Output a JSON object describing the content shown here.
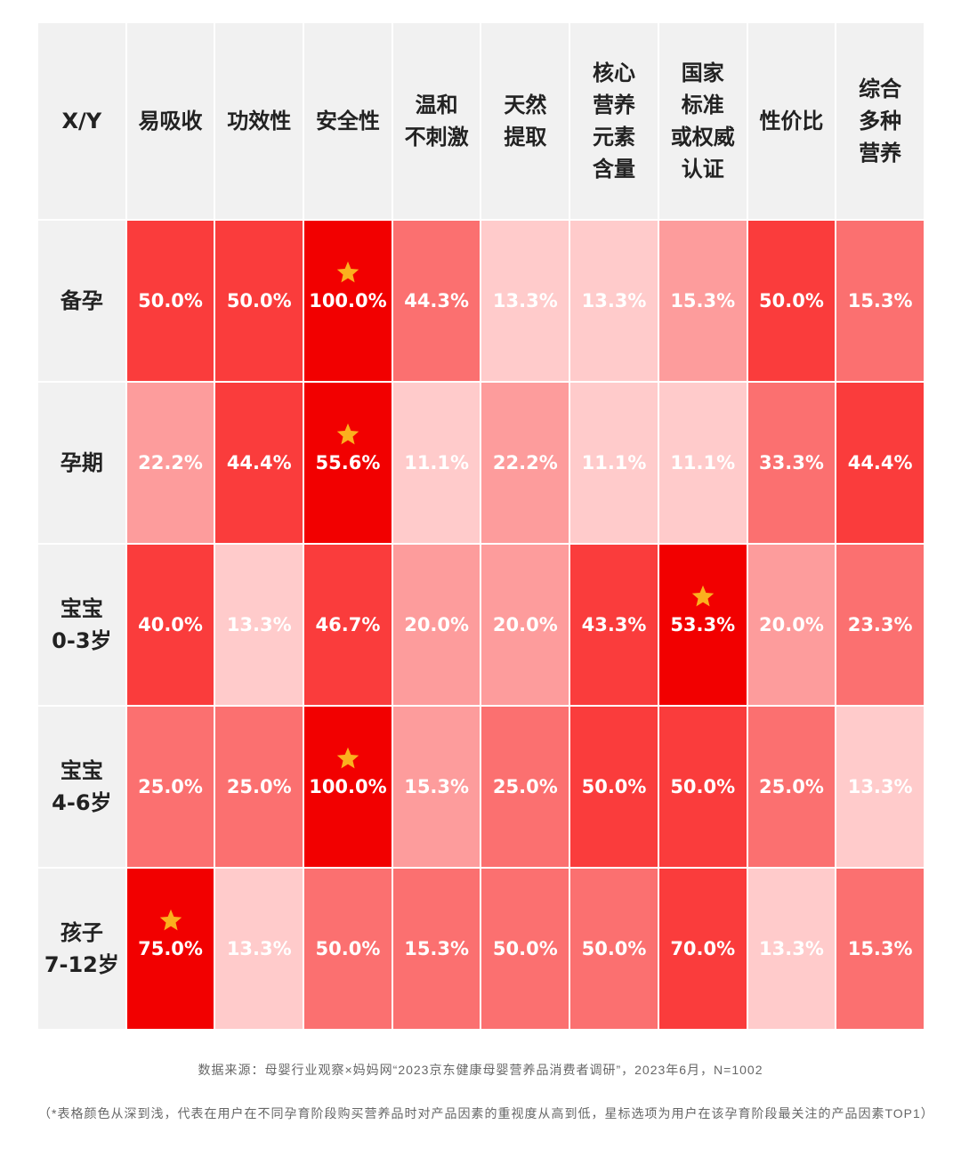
{
  "chart_data": {
    "type": "heatmap",
    "corner_label": "X/Y",
    "columns": [
      "易吸收",
      "功效性",
      "安全性",
      "温和\n不刺激",
      "天然\n提取",
      "核心\n营养\n元素\n含量",
      "国家\n标准\n或权威\n认证",
      "性价比",
      "综合\n多种\n营养"
    ],
    "rows": [
      {
        "label": "备孕",
        "values": [
          50.0,
          50.0,
          100.0,
          44.3,
          13.3,
          13.3,
          15.3,
          50.0,
          15.3
        ],
        "top1": 2
      },
      {
        "label": "孕期",
        "values": [
          22.2,
          44.4,
          55.6,
          11.1,
          22.2,
          11.1,
          11.1,
          33.3,
          44.4
        ],
        "top1": 2
      },
      {
        "label": "宝宝\n0-3岁",
        "values": [
          40.0,
          13.3,
          46.7,
          20.0,
          20.0,
          43.3,
          53.3,
          20.0,
          23.3
        ],
        "top1": 6
      },
      {
        "label": "宝宝\n4-6岁",
        "values": [
          25.0,
          25.0,
          100.0,
          15.3,
          25.0,
          50.0,
          50.0,
          25.0,
          13.3
        ],
        "top1": 2
      },
      {
        "label": "孩子\n7-12岁",
        "values": [
          75.0,
          13.3,
          50.0,
          15.3,
          50.0,
          50.0,
          70.0,
          13.3,
          15.3
        ],
        "top1": 0
      }
    ],
    "value_suffix": "%",
    "shades": [
      {
        "level": 1,
        "color": "#f20000"
      },
      {
        "level": 2,
        "color": "#fa3c3c"
      },
      {
        "level": 3,
        "color": "#fb7070"
      },
      {
        "level": 4,
        "color": "#fd9c9c"
      },
      {
        "level": 5,
        "color": "#ffcbcb"
      }
    ],
    "cell_levels": [
      [
        2,
        2,
        1,
        3,
        5,
        5,
        4,
        2,
        3
      ],
      [
        4,
        2,
        1,
        5,
        4,
        5,
        5,
        3,
        2
      ],
      [
        2,
        5,
        2,
        4,
        4,
        2,
        1,
        4,
        3
      ],
      [
        3,
        3,
        1,
        4,
        3,
        2,
        2,
        3,
        5
      ],
      [
        1,
        5,
        3,
        3,
        3,
        3,
        2,
        5,
        3
      ]
    ],
    "star_color": "#fbb01e"
  },
  "source": "数据来源：母婴行业观察×妈妈网“2023京东健康母婴营养品消费者调研”，2023年6月，N=1002",
  "note": "（*表格颜色从深到浅，代表在用户在不同孕育阶段购买营养品时对产品因素的重视度从高到低，星标选项为用户在该孕育阶段最关注的产品因素TOP1）"
}
